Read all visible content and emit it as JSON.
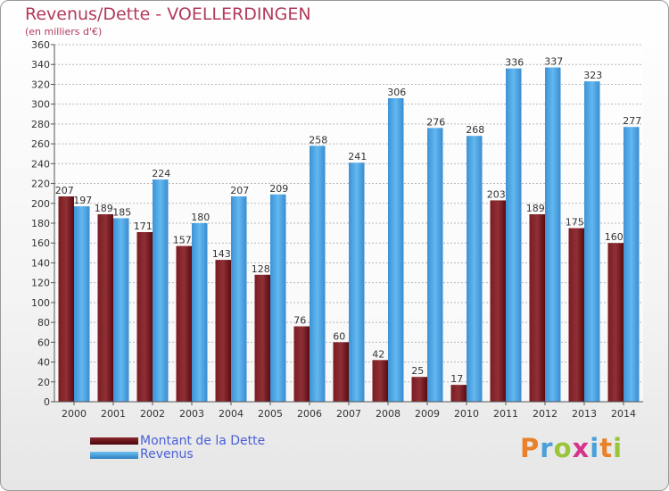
{
  "title": "Revenus/Dette - VOELLERDINGEN",
  "subtitle": "(en milliers d'€)",
  "legend": {
    "dette": "Montant de la Dette",
    "revenus": "Revenus"
  },
  "logo": {
    "text": "Proxiti",
    "colors": [
      "#e8812a",
      "#4aa0d8",
      "#9ac43a",
      "#d6348a",
      "#4aa0d8",
      "#e8812a",
      "#9ac43a"
    ]
  },
  "colors": {
    "dette_top": "#8a2a30",
    "dette_bottom": "#5a0b10",
    "revenus_top": "#5eb6ee",
    "revenus_bottom": "#2f7fc0"
  },
  "chart_data": {
    "type": "bar",
    "categories": [
      "2000",
      "2001",
      "2002",
      "2003",
      "2004",
      "2005",
      "2006",
      "2007",
      "2008",
      "2009",
      "2010",
      "2011",
      "2012",
      "2013",
      "2014"
    ],
    "series": [
      {
        "name": "Montant de la Dette",
        "values": [
          207,
          189,
          171,
          157,
          143,
          128,
          76,
          60,
          42,
          25,
          17,
          203,
          189,
          175,
          160
        ]
      },
      {
        "name": "Revenus",
        "values": [
          197,
          185,
          224,
          180,
          207,
          209,
          258,
          241,
          306,
          276,
          268,
          336,
          337,
          323,
          277
        ]
      }
    ],
    "ylim": [
      0,
      360
    ],
    "ytick_step": 20,
    "grid": true,
    "legend_position": "bottom-left"
  }
}
